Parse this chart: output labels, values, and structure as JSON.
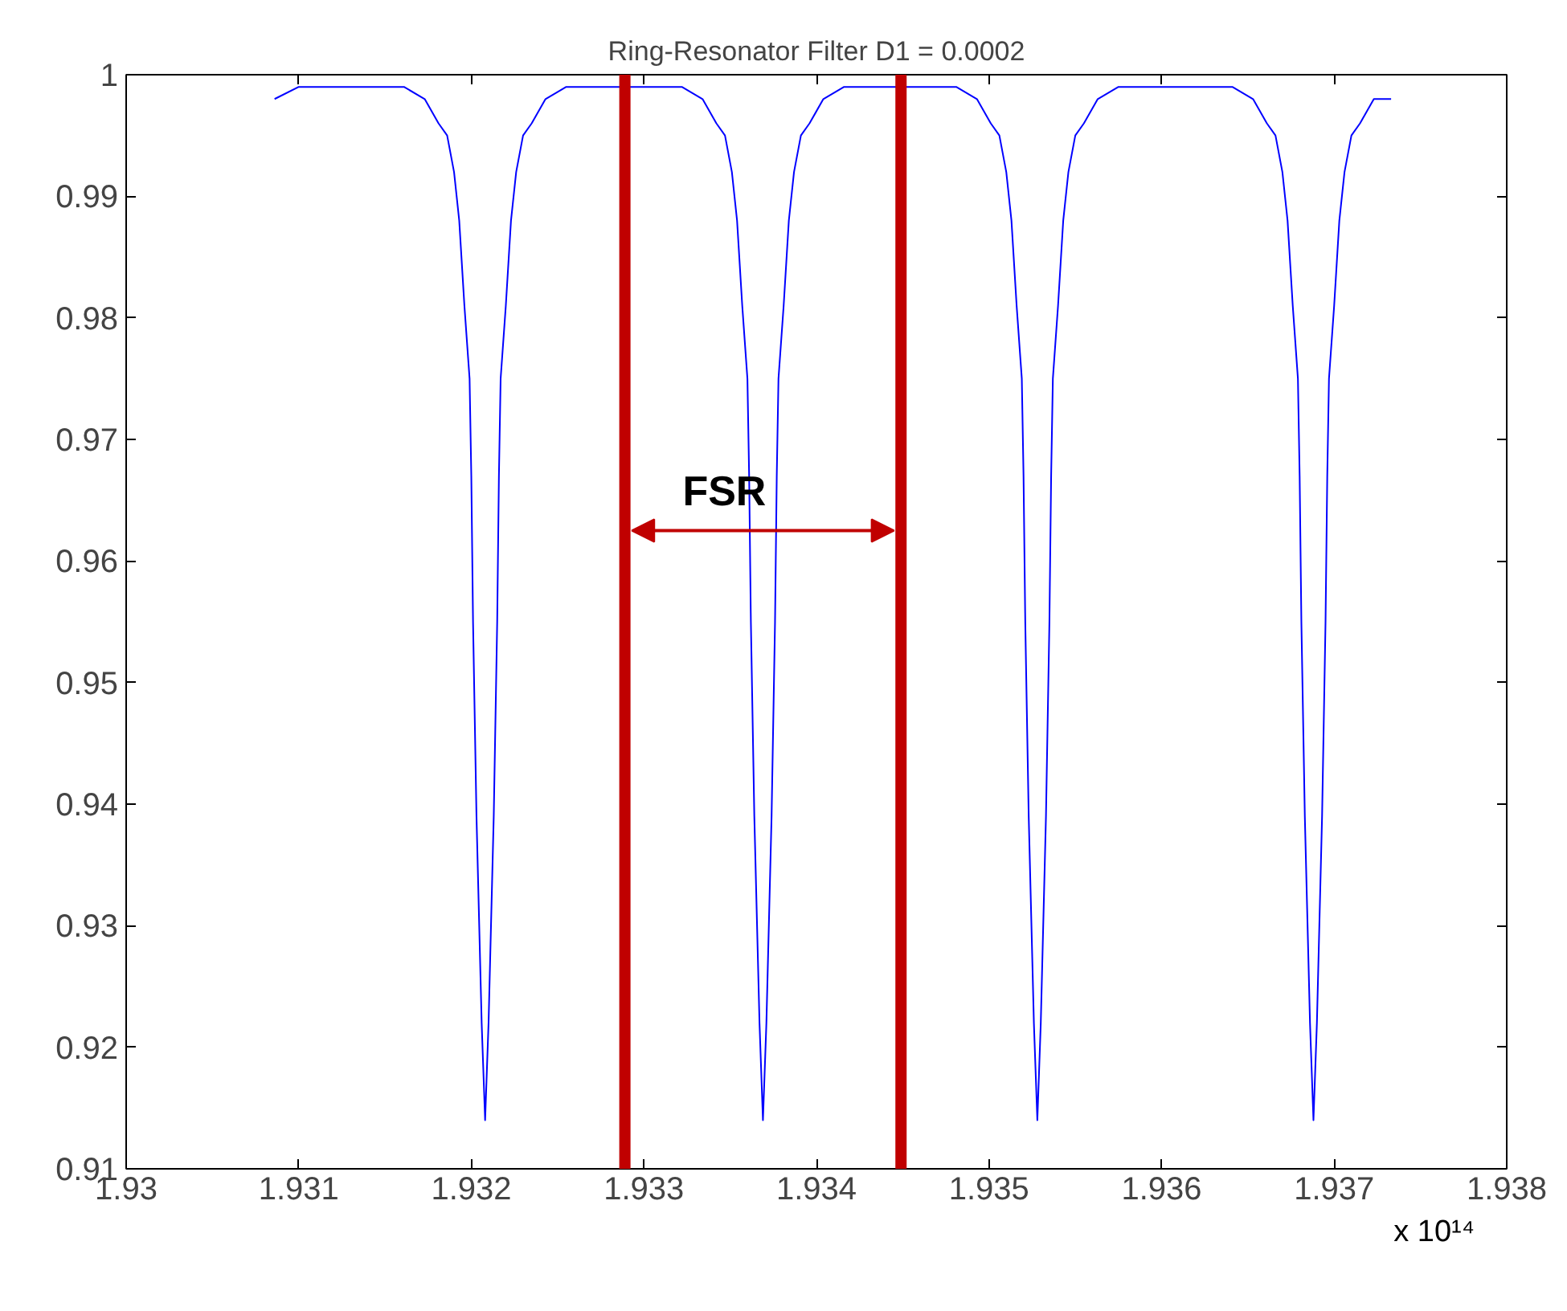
{
  "chart_data": {
    "type": "line",
    "title": "Ring-Resonator Filter D1 = 0.0002",
    "x": [
      1.93086,
      1.931,
      1.9313,
      1.93148,
      1.93161,
      1.93173,
      1.93181,
      1.93186,
      1.9319,
      1.93193,
      1.93196,
      1.93199,
      1.932,
      1.93201,
      1.93203,
      1.93206,
      1.93208,
      1.9321,
      1.93213,
      1.93215,
      1.93216,
      1.93217,
      1.9322,
      1.93223,
      1.93226,
      1.9323,
      1.93235,
      1.93243,
      1.93255,
      1.93268,
      1.93289,
      1.93309,
      1.93322,
      1.93334,
      1.93342,
      1.93347,
      1.93351,
      1.93354,
      1.93357,
      1.9336,
      1.93361,
      1.93362,
      1.93364,
      1.93367,
      1.93369,
      1.93371,
      1.93374,
      1.93376,
      1.93377,
      1.93378,
      1.93381,
      1.93384,
      1.93387,
      1.93391,
      1.93396,
      1.93404,
      1.93416,
      1.93429,
      1.93449,
      1.93468,
      1.93481,
      1.93493,
      1.93501,
      1.93506,
      1.9351,
      1.93513,
      1.93516,
      1.93519,
      1.9352,
      1.93521,
      1.93523,
      1.93526,
      1.93528,
      1.9353,
      1.93533,
      1.93535,
      1.93536,
      1.93537,
      1.9354,
      1.93543,
      1.93546,
      1.9355,
      1.93555,
      1.93563,
      1.93575,
      1.93588,
      1.93608,
      1.93628,
      1.93641,
      1.93653,
      1.93661,
      1.93666,
      1.9367,
      1.93673,
      1.93676,
      1.93679,
      1.9368,
      1.93681,
      1.93683,
      1.93686,
      1.93688,
      1.9369,
      1.93693,
      1.93695,
      1.93696,
      1.93697,
      1.937,
      1.93703,
      1.93706,
      1.9371,
      1.93715,
      1.93723,
      1.93733
    ],
    "series": [
      {
        "color": "#0000ff",
        "values": [
          0.998,
          0.999,
          0.999,
          0.999,
          0.999,
          0.998,
          0.996,
          0.995,
          0.992,
          0.988,
          0.981,
          0.975,
          0.967,
          0.955,
          0.939,
          0.922,
          0.914,
          0.922,
          0.939,
          0.955,
          0.967,
          0.975,
          0.981,
          0.988,
          0.992,
          0.995,
          0.996,
          0.998,
          0.999,
          0.999,
          0.999,
          0.999,
          0.999,
          0.998,
          0.996,
          0.995,
          0.992,
          0.988,
          0.981,
          0.975,
          0.967,
          0.955,
          0.939,
          0.922,
          0.914,
          0.922,
          0.939,
          0.955,
          0.967,
          0.975,
          0.981,
          0.988,
          0.992,
          0.995,
          0.996,
          0.998,
          0.999,
          0.999,
          0.999,
          0.999,
          0.999,
          0.998,
          0.996,
          0.995,
          0.992,
          0.988,
          0.981,
          0.975,
          0.967,
          0.955,
          0.939,
          0.922,
          0.914,
          0.922,
          0.939,
          0.955,
          0.967,
          0.975,
          0.981,
          0.988,
          0.992,
          0.995,
          0.996,
          0.998,
          0.999,
          0.999,
          0.999,
          0.999,
          0.999,
          0.998,
          0.996,
          0.995,
          0.992,
          0.988,
          0.981,
          0.975,
          0.967,
          0.955,
          0.939,
          0.922,
          0.914,
          0.922,
          0.939,
          0.955,
          0.967,
          0.975,
          0.981,
          0.988,
          0.992,
          0.995,
          0.996,
          0.998,
          0.998
        ]
      }
    ],
    "xlim": [
      1.93,
      1.938
    ],
    "ylim": [
      0.91,
      1
    ],
    "xticks": [
      1.93,
      1.931,
      1.932,
      1.933,
      1.934,
      1.935,
      1.936,
      1.937,
      1.938
    ],
    "yticks": [
      0.91,
      0.92,
      0.93,
      0.94,
      0.95,
      0.96,
      0.97,
      0.98,
      0.99,
      1
    ],
    "ref_lines": [
      {
        "axis": "x",
        "value": 1.93289,
        "color": "#c00000"
      },
      {
        "axis": "x",
        "value": 1.93449,
        "color": "#c00000"
      }
    ],
    "annotations": [
      {
        "text": "FSR",
        "x": 1.93289,
        "y": 0.9625
      },
      "x 10¹⁴"
    ],
    "grid": false,
    "marker": "none",
    "line_style": "solid"
  }
}
